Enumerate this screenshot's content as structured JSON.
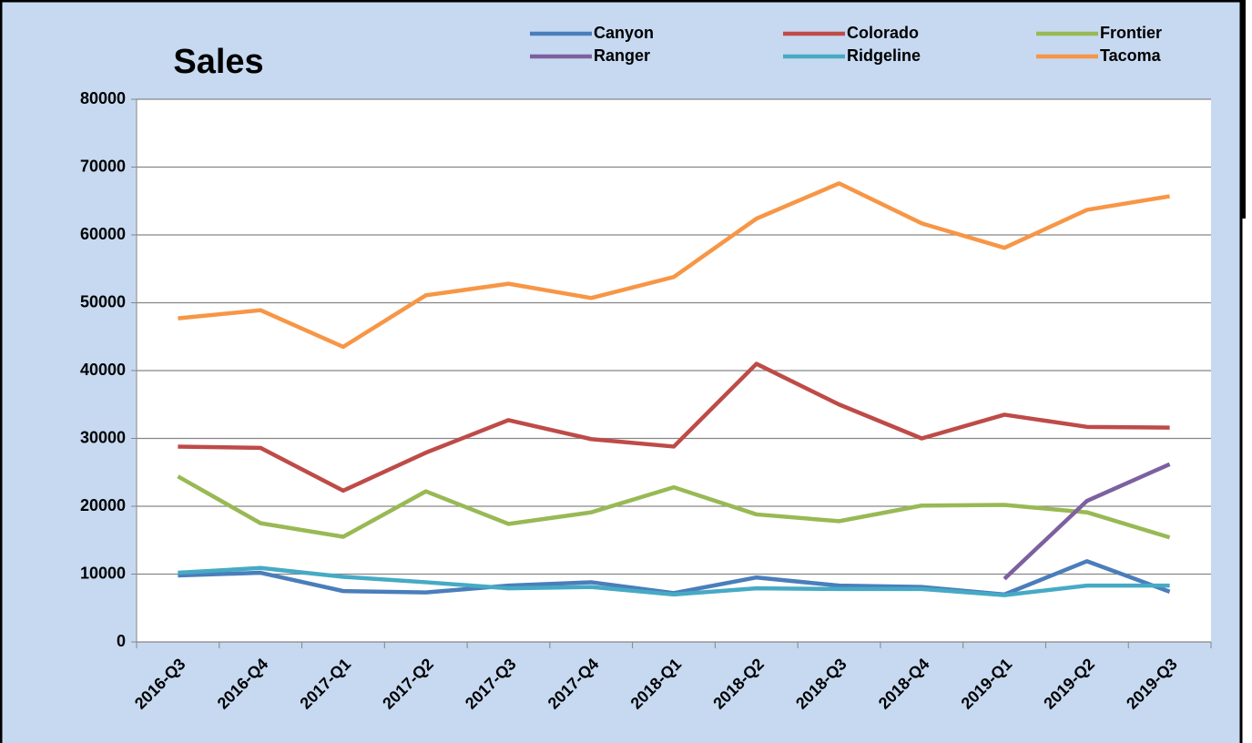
{
  "chart_data": {
    "type": "line",
    "title": "Sales",
    "categories": [
      "2016-Q3",
      "2016-Q4",
      "2017-Q1",
      "2017-Q2",
      "2017-Q3",
      "2017-Q4",
      "2018-Q1",
      "2018-Q2",
      "2018-Q3",
      "2018-Q4",
      "2019-Q1",
      "2019-Q2",
      "2019-Q3"
    ],
    "series": [
      {
        "name": "Canyon",
        "color": "#4a7ebb",
        "values": [
          9800,
          10200,
          7500,
          7300,
          8300,
          8800,
          7200,
          9500,
          8300,
          8100,
          7000,
          11900,
          7400
        ]
      },
      {
        "name": "Colorado",
        "color": "#be4b48",
        "values": [
          28800,
          28600,
          22300,
          27900,
          32700,
          29900,
          28800,
          41000,
          35000,
          30000,
          33500,
          31700,
          31600
        ]
      },
      {
        "name": "Frontier",
        "color": "#98b954",
        "values": [
          24400,
          17500,
          15500,
          22200,
          17400,
          19100,
          22800,
          18800,
          17800,
          20100,
          20200,
          19100,
          15400
        ]
      },
      {
        "name": "Ranger",
        "color": "#7d60a0",
        "values": [
          null,
          null,
          null,
          null,
          null,
          null,
          null,
          null,
          null,
          null,
          9300,
          20800,
          26200
        ]
      },
      {
        "name": "Ridgeline",
        "color": "#46aac5",
        "values": [
          10200,
          10900,
          9600,
          8800,
          7900,
          8100,
          7000,
          7900,
          7800,
          7800,
          6900,
          8300,
          8300
        ]
      },
      {
        "name": "Tacoma",
        "color": "#f79646",
        "values": [
          47700,
          48900,
          43500,
          51100,
          52800,
          50700,
          53800,
          62400,
          67600,
          61700,
          58100,
          63700,
          65700
        ]
      }
    ],
    "ylim": [
      0,
      80000
    ],
    "yticks": [
      0,
      10000,
      20000,
      30000,
      40000,
      50000,
      60000,
      70000,
      80000
    ],
    "grid": true,
    "legend": "top-right"
  }
}
